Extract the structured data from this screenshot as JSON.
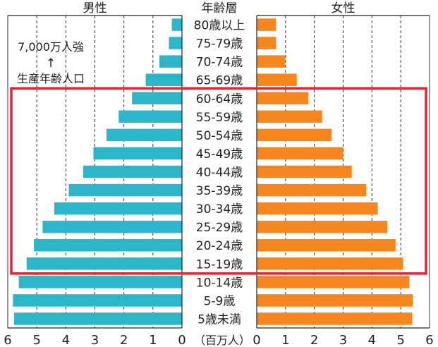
{
  "chart_data": {
    "type": "bar",
    "center_label": "年齢層",
    "unit_label": "（百万人）",
    "categories": [
      "80歳以上",
      "75-79歳",
      "70-74歳",
      "65-69歳",
      "60-64歳",
      "55-59歳",
      "50-54歳",
      "45-49歳",
      "40-44歳",
      "35-39歳",
      "30-34歳",
      "25-29歳",
      "20-24歳",
      "15-19歳",
      "10-14歳",
      "5-9歳",
      "5歳未満"
    ],
    "series": [
      {
        "name": "男性",
        "values": [
          0.35,
          0.45,
          0.78,
          1.25,
          1.72,
          2.18,
          2.6,
          3.05,
          3.4,
          3.9,
          4.4,
          4.8,
          5.1,
          5.35,
          5.62,
          5.82,
          5.78
        ],
        "color": "#2bb6c9"
      },
      {
        "name": "女性",
        "values": [
          0.67,
          0.67,
          0.99,
          1.39,
          1.79,
          2.27,
          2.6,
          3.0,
          3.3,
          3.8,
          4.2,
          4.53,
          4.82,
          5.08,
          5.3,
          5.42,
          5.4
        ],
        "color": "#f7861e"
      }
    ],
    "xlim": [
      0,
      6
    ],
    "ticks": [
      0,
      1,
      2,
      3,
      4,
      5,
      6
    ],
    "annotation": {
      "line1": "7,000万人強",
      "arrow": "↑",
      "line2": "生産年齢人口",
      "highlight_from": "15-19歳",
      "highlight_to": "60-64歳",
      "highlight_color": "#e32432"
    }
  }
}
